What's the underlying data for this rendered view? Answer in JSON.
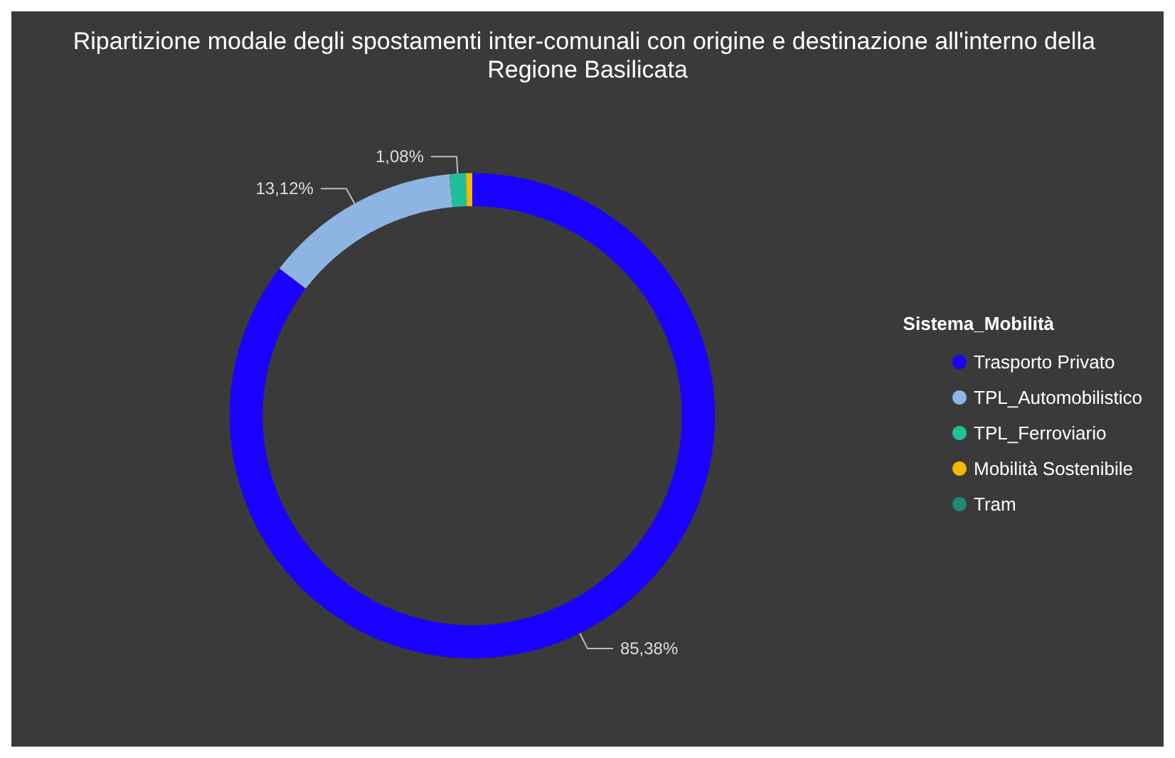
{
  "chart_data": {
    "type": "donut",
    "title": "Ripartizione modale degli spostamenti inter-comunali con origine e destinazione all'interno della Regione Basilicata",
    "legend_title": "Sistema_Mobilità",
    "legend": "right",
    "categories": [
      "Trasporto Privato",
      "TPL_Automobilistico",
      "TPL_Ferroviario",
      "Mobilità Sostenibile",
      "Tram"
    ],
    "values": [
      85.38,
      13.12,
      1.08,
      0.42,
      0
    ],
    "value_labels": [
      "85,38%",
      "13,12%",
      "1,08%",
      null,
      null
    ],
    "colors": [
      "#1a00ff",
      "#8db4e2",
      "#1fbf9a",
      "#f5b800",
      "#1f8a70"
    ]
  }
}
